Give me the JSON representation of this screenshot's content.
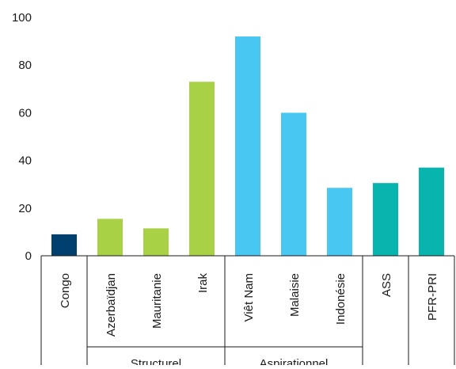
{
  "chart_data": {
    "type": "bar",
    "title": "",
    "xlabel": "",
    "ylabel": "",
    "ylim": [
      0,
      100
    ],
    "yticks": [
      0,
      20,
      40,
      60,
      80,
      100
    ],
    "grid": false,
    "categories": [
      "Congo",
      "Azerbaïdjan",
      "Mauritanie",
      "Irak",
      "Viêt Nam",
      "Malaisie",
      "Indonésie",
      "ASS",
      "PFR-PRI"
    ],
    "values": [
      9,
      15.5,
      11.5,
      73,
      92,
      60,
      28.5,
      30.5,
      37
    ],
    "bar_colors": [
      "#003f6e",
      "#a9d146",
      "#a9d146",
      "#a9d146",
      "#47c7f2",
      "#47c7f2",
      "#47c7f2",
      "#08b5ae",
      "#08b5ae"
    ],
    "groups": [
      {
        "label": "Structurel",
        "start": 1,
        "end": 3
      },
      {
        "label": "Aspirationnel",
        "start": 4,
        "end": 6
      }
    ]
  }
}
